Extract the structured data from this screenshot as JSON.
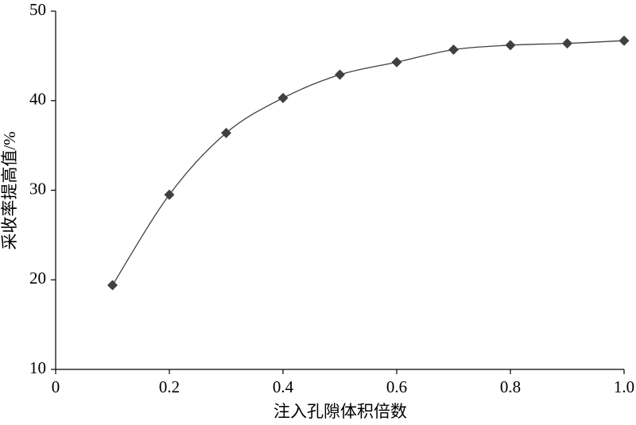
{
  "chart_data": {
    "type": "line",
    "x_label": "注入孔隙体积倍数",
    "y_label": "采收率提高值/%",
    "x": [
      0.1,
      0.2,
      0.3,
      0.4,
      0.5,
      0.6,
      0.7,
      0.8,
      0.9,
      1.0
    ],
    "values": [
      19.4,
      29.5,
      36.4,
      40.3,
      42.9,
      44.3,
      45.7,
      46.2,
      46.4,
      46.7
    ],
    "color": "#404040",
    "marker": "diamond",
    "smooth": true,
    "xlim": [
      0,
      1
    ],
    "xticks": [
      0,
      0.2,
      0.4,
      0.6,
      0.8,
      {
        "value": 1,
        "label": "1.0"
      }
    ],
    "ylim": [
      10,
      50
    ],
    "yticks": [
      10,
      20,
      30,
      40,
      50
    ]
  }
}
